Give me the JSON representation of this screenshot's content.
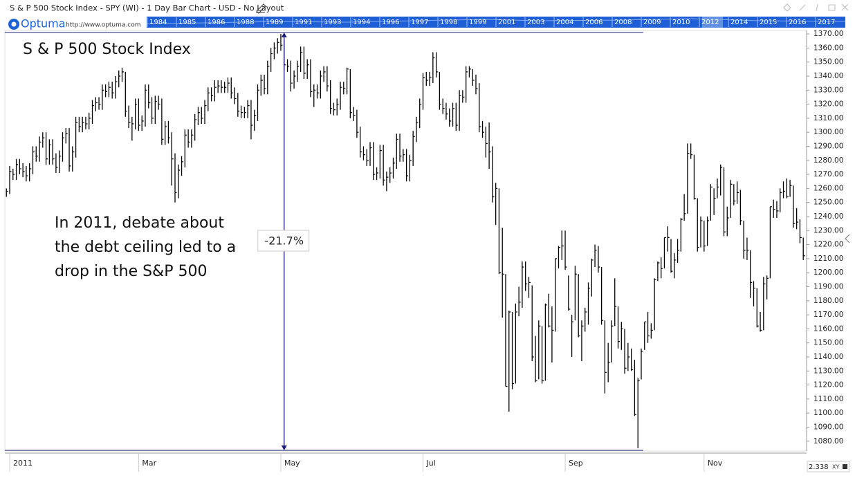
{
  "header": {
    "title": "S & P 500 Stock Index - SPY (WI) - 1 Day Bar Chart - USD - No Layout",
    "logo": "Optuma",
    "url": "http://www.optuma.com"
  },
  "navigator": {
    "years": [
      "1984",
      "1985",
      "1986",
      "1988",
      "1989",
      "1991",
      "1993",
      "1994",
      "1996",
      "1997",
      "1998",
      "1999",
      "2001",
      "2003",
      "2004",
      "2006",
      "2008",
      "2009",
      "2010",
      "2012",
      "2014",
      "2015",
      "2016",
      "2017"
    ]
  },
  "zoom": {
    "value": "2.338",
    "mode": "XY"
  },
  "chart_data": {
    "type": "ohlc",
    "title": "S & P 500 Stock Index",
    "annotation": [
      "In 2011, debate about",
      "the debt ceiling led to a",
      "drop in the S&P 500"
    ],
    "measure": {
      "from": 1371,
      "to": 1073.5,
      "change": -21.7,
      "change_label": "-21.7%"
    },
    "color": "#000000",
    "measure_color": "#1b1f7a",
    "ylim": [
      1073,
      1372.5
    ],
    "yticks": [
      {
        "value": 1080,
        "label": "1080.00"
      },
      {
        "value": 1090,
        "label": "1090.00"
      },
      {
        "value": 1100,
        "label": "1100.00"
      },
      {
        "value": 1110,
        "label": "1110.00"
      },
      {
        "value": 1120,
        "label": "1120.00"
      },
      {
        "value": 1130,
        "label": "1130.00"
      },
      {
        "value": 1140,
        "label": "1140.00"
      },
      {
        "value": 1150,
        "label": "1150.00"
      },
      {
        "value": 1160,
        "label": "1160.00"
      },
      {
        "value": 1170,
        "label": "1170.00"
      },
      {
        "value": 1180,
        "label": "1180.00"
      },
      {
        "value": 1190,
        "label": "1190.00"
      },
      {
        "value": 1200,
        "label": "1200.00"
      },
      {
        "value": 1210,
        "label": "1210.00"
      },
      {
        "value": 1220,
        "label": "1220.00"
      },
      {
        "value": 1230,
        "label": "1230.00"
      },
      {
        "value": 1240,
        "label": "1240.00"
      },
      {
        "value": 1250,
        "label": "1250.00"
      },
      {
        "value": 1260,
        "label": "1260.00"
      },
      {
        "value": 1270,
        "label": "1270.00"
      },
      {
        "value": 1280,
        "label": "1280.00"
      },
      {
        "value": 1290,
        "label": "1290.00"
      },
      {
        "value": 1300,
        "label": "1300.00"
      },
      {
        "value": 1310,
        "label": "1310.00"
      },
      {
        "value": 1320,
        "label": "1320.00"
      },
      {
        "value": 1330,
        "label": "1330.00"
      },
      {
        "value": 1340,
        "label": "1340.00"
      },
      {
        "value": 1350,
        "label": "1350.00"
      },
      {
        "value": 1360,
        "label": "1360.00"
      },
      {
        "value": 1370,
        "label": "1370.00"
      }
    ],
    "xticks": [
      {
        "value": 1,
        "label": "2011"
      },
      {
        "value": 40,
        "label": "Mar"
      },
      {
        "value": 83,
        "label": "May"
      },
      {
        "value": 126,
        "label": "Jul"
      },
      {
        "value": 169,
        "label": "Sep"
      },
      {
        "value": 211,
        "label": "Nov"
      }
    ],
    "high": [
      1260,
      1276,
      1274,
      1281,
      1281,
      1278,
      1276,
      1278,
      1290,
      1290,
      1297,
      1300,
      1300,
      1295,
      1295,
      1285,
      1287,
      1300,
      1303,
      1303,
      1290,
      1311,
      1311,
      1311,
      1311,
      1314,
      1323,
      1325,
      1325,
      1334,
      1334,
      1336,
      1336,
      1340,
      1344,
      1346,
      1343,
      1319,
      1311,
      1324,
      1324,
      1312,
      1334,
      1334,
      1325,
      1326,
      1326,
      1324,
      1308,
      1308,
      1300,
      1285,
      1277,
      1283,
      1302,
      1302,
      1302,
      1313,
      1318,
      1318,
      1323,
      1332,
      1332,
      1337,
      1337,
      1337,
      1336,
      1339,
      1339,
      1332,
      1328,
      1319,
      1318,
      1323,
      1323,
      1316,
      1334,
      1341,
      1341,
      1351,
      1360,
      1364,
      1367,
      1370,
      1366,
      1352,
      1351,
      1344,
      1351,
      1361,
      1361,
      1352,
      1352,
      1334,
      1334,
      1344,
      1347,
      1347,
      1337,
      1321,
      1324,
      1336,
      1336,
      1346,
      1345,
      1318,
      1316,
      1304,
      1290,
      1288,
      1293,
      1293,
      1275,
      1291,
      1291,
      1272,
      1275,
      1282,
      1299,
      1299,
      1288,
      1288,
      1284,
      1301,
      1311,
      1324,
      1342,
      1343,
      1343,
      1357,
      1357,
      1343,
      1324,
      1321,
      1317,
      1321,
      1321,
      1330,
      1330,
      1347,
      1347,
      1345,
      1341,
      1335,
      1308,
      1304,
      1307,
      1290,
      1264,
      1260,
      1232,
      1199,
      1173,
      1172,
      1178,
      1190,
      1208,
      1208,
      1197,
      1191,
      1155,
      1166,
      1162,
      1178,
      1185,
      1176,
      1210,
      1219,
      1230,
      1230,
      1198,
      1170,
      1205,
      1199,
      1166,
      1175,
      1193,
      1210,
      1220,
      1219,
      1204,
      1166,
      1150,
      1166,
      1196,
      1176,
      1165,
      1160,
      1150,
      1146,
      1138,
      1125,
      1146,
      1165,
      1172,
      1164,
      1196,
      1208,
      1211,
      1225,
      1233,
      1224,
      1214,
      1224,
      1239,
      1256,
      1292,
      1292,
      1284,
      1253,
      1240,
      1237,
      1240,
      1263,
      1260,
      1267,
      1277,
      1275,
      1247,
      1266,
      1263,
      1265,
      1259,
      1237,
      1225,
      1216,
      1194,
      1189,
      1172,
      1197,
      1198,
      1247,
      1252,
      1251,
      1260,
      1265,
      1267,
      1266,
      1262,
      1246,
      1238,
      1225
    ],
    "low": [
      1254,
      1256,
      1266,
      1266,
      1270,
      1268,
      1265,
      1265,
      1270,
      1279,
      1279,
      1289,
      1277,
      1277,
      1277,
      1271,
      1271,
      1279,
      1292,
      1272,
      1272,
      1282,
      1300,
      1300,
      1302,
      1302,
      1306,
      1315,
      1316,
      1316,
      1325,
      1325,
      1324,
      1324,
      1332,
      1336,
      1311,
      1303,
      1294,
      1302,
      1301,
      1301,
      1304,
      1317,
      1306,
      1306,
      1316,
      1291,
      1291,
      1292,
      1262,
      1250,
      1253,
      1269,
      1275,
      1289,
      1289,
      1294,
      1305,
      1306,
      1306,
      1315,
      1322,
      1322,
      1328,
      1328,
      1328,
      1328,
      1324,
      1320,
      1311,
      1310,
      1310,
      1310,
      1295,
      1301,
      1308,
      1326,
      1327,
      1327,
      1343,
      1352,
      1356,
      1358,
      1344,
      1343,
      1329,
      1331,
      1336,
      1343,
      1338,
      1338,
      1325,
      1318,
      1324,
      1324,
      1336,
      1329,
      1313,
      1312,
      1312,
      1316,
      1327,
      1327,
      1310,
      1308,
      1296,
      1282,
      1280,
      1276,
      1276,
      1266,
      1266,
      1267,
      1262,
      1258,
      1264,
      1267,
      1274,
      1279,
      1279,
      1265,
      1265,
      1276,
      1293,
      1303,
      1316,
      1333,
      1333,
      1335,
      1339,
      1316,
      1313,
      1309,
      1304,
      1304,
      1301,
      1301,
      1321,
      1321,
      1339,
      1333,
      1327,
      1300,
      1296,
      1282,
      1274,
      1250,
      1234,
      1199,
      1168,
      1119,
      1101,
      1117,
      1121,
      1169,
      1175,
      1187,
      1182,
      1137,
      1122,
      1124,
      1121,
      1123,
      1161,
      1136,
      1158,
      1203,
      1209,
      1202,
      1173,
      1140,
      1166,
      1154,
      1137,
      1158,
      1163,
      1183,
      1204,
      1200,
      1163,
      1114,
      1122,
      1136,
      1162,
      1146,
      1145,
      1128,
      1130,
      1130,
      1098,
      1075,
      1124,
      1145,
      1150,
      1153,
      1159,
      1194,
      1196,
      1203,
      1215,
      1200,
      1196,
      1207,
      1215,
      1237,
      1242,
      1281,
      1252,
      1215,
      1218,
      1215,
      1219,
      1237,
      1241,
      1253,
      1255,
      1226,
      1226,
      1239,
      1248,
      1249,
      1234,
      1210,
      1209,
      1182,
      1176,
      1161,
      1158,
      1159,
      1181,
      1196,
      1239,
      1239,
      1243,
      1253,
      1253,
      1254,
      1232,
      1231,
      1221,
      1209
    ],
    "close": [
      1258,
      1272,
      1270,
      1277,
      1274,
      1272,
      1269,
      1274,
      1286,
      1283,
      1293,
      1296,
      1281,
      1291,
      1281,
      1275,
      1283,
      1296,
      1299,
      1276,
      1286,
      1307,
      1304,
      1307,
      1306,
      1310,
      1319,
      1321,
      1320,
      1330,
      1329,
      1332,
      1328,
      1336,
      1340,
      1343,
      1315,
      1307,
      1306,
      1320,
      1305,
      1308,
      1330,
      1321,
      1310,
      1322,
      1320,
      1295,
      1304,
      1296,
      1281,
      1257,
      1273,
      1279,
      1298,
      1293,
      1298,
      1309,
      1314,
      1310,
      1319,
      1328,
      1326,
      1332,
      1333,
      1332,
      1332,
      1335,
      1328,
      1324,
      1315,
      1314,
      1314,
      1319,
      1305,
      1312,
      1330,
      1337,
      1331,
      1347,
      1356,
      1360,
      1364,
      1362,
      1348,
      1347,
      1335,
      1340,
      1347,
      1357,
      1342,
      1348,
      1329,
      1330,
      1328,
      1340,
      1343,
      1333,
      1317,
      1316,
      1320,
      1332,
      1331,
      1345,
      1314,
      1312,
      1300,
      1286,
      1284,
      1280,
      1289,
      1270,
      1271,
      1287,
      1266,
      1268,
      1271,
      1278,
      1295,
      1283,
      1284,
      1269,
      1280,
      1297,
      1307,
      1320,
      1339,
      1337,
      1339,
      1353,
      1343,
      1320,
      1317,
      1313,
      1308,
      1317,
      1305,
      1326,
      1325,
      1343,
      1345,
      1337,
      1331,
      1304,
      1300,
      1292,
      1286,
      1254,
      1260,
      1200,
      1199,
      1119,
      1172,
      1121,
      1172,
      1179,
      1204,
      1192,
      1193,
      1140,
      1123,
      1162,
      1123,
      1177,
      1162,
      1159,
      1210,
      1218,
      1219,
      1204,
      1174,
      1165,
      1199,
      1155,
      1162,
      1172,
      1189,
      1209,
      1216,
      1204,
      1166,
      1129,
      1136,
      1162,
      1176,
      1151,
      1160,
      1132,
      1140,
      1131,
      1099,
      1123,
      1144,
      1165,
      1155,
      1159,
      1195,
      1207,
      1203,
      1225,
      1225,
      1201,
      1209,
      1216,
      1238,
      1242,
      1285,
      1284,
      1253,
      1218,
      1237,
      1219,
      1237,
      1261,
      1253,
      1261,
      1275,
      1229,
      1239,
      1263,
      1251,
      1257,
      1237,
      1216,
      1216,
      1193,
      1189,
      1162,
      1159,
      1192,
      1196,
      1247,
      1245,
      1244,
      1257,
      1258,
      1254,
      1262,
      1235,
      1236,
      1225,
      1212
    ]
  }
}
